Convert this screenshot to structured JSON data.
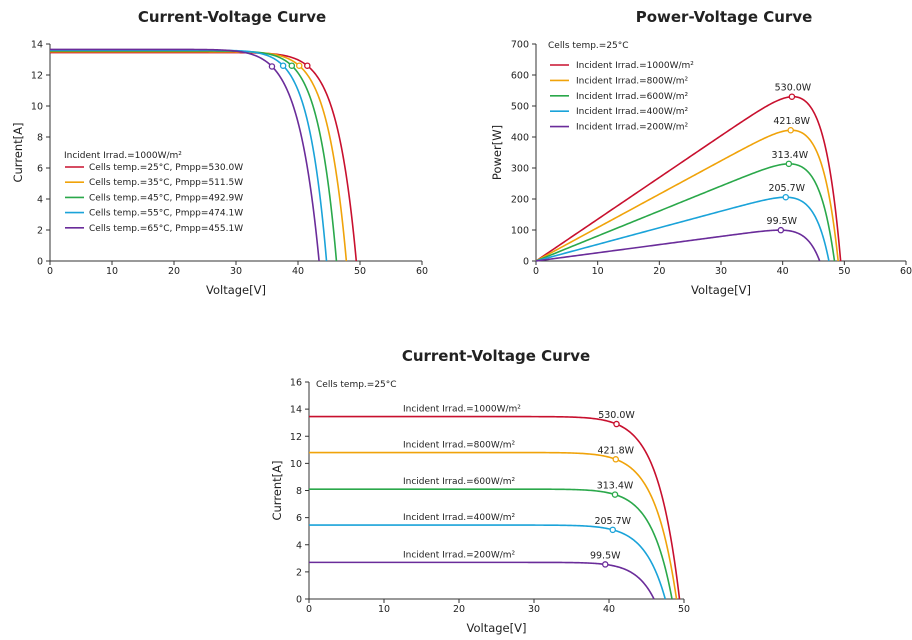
{
  "chart_data": [
    {
      "type": "line",
      "title": "Current-Voltage Curve",
      "xlabel": "Voltage[V]",
      "ylabel": "Current[A]",
      "xlim": [
        0,
        60
      ],
      "ylim": [
        0,
        14
      ],
      "xticks": [
        0,
        10,
        20,
        30,
        40,
        50,
        60
      ],
      "yticks": [
        0,
        2,
        4,
        6,
        8,
        10,
        12,
        14
      ],
      "legend_title": "Incident Irrad.=1000W/m²",
      "legend_position": "lower-left",
      "series": [
        {
          "name": "Cells temp.=25°C, Pmpp=530.0W",
          "color": "#c8102e",
          "isc": 13.45,
          "voc": 49.4,
          "vmp": 41.5,
          "imp": 12.6
        },
        {
          "name": "Cells temp.=35°C, Pmpp=511.5W",
          "color": "#f0a30a",
          "isc": 13.5,
          "voc": 47.8,
          "vmp": 40.2,
          "imp": 12.6
        },
        {
          "name": "Cells temp.=45°C, Pmpp=492.9W",
          "color": "#2aa84a",
          "isc": 13.55,
          "voc": 46.2,
          "vmp": 39.0,
          "imp": 12.6
        },
        {
          "name": "Cells temp.=55°C, Pmpp=474.1W",
          "color": "#1aa3d9",
          "isc": 13.6,
          "voc": 44.6,
          "vmp": 37.6,
          "imp": 12.6
        },
        {
          "name": "Cells temp.=65°C, Pmpp=455.1W",
          "color": "#6a2c9a",
          "isc": 13.65,
          "voc": 43.4,
          "vmp": 35.8,
          "imp": 12.55
        }
      ]
    },
    {
      "type": "line",
      "title": "Power-Voltage Curve",
      "xlabel": "Voltage[V]",
      "ylabel": "Power[W]",
      "xlim": [
        0,
        60
      ],
      "ylim": [
        0,
        700
      ],
      "xticks": [
        0,
        10,
        20,
        30,
        40,
        50,
        60
      ],
      "yticks": [
        0,
        100,
        200,
        300,
        400,
        500,
        600,
        700
      ],
      "legend_title": "Cells temp.=25°C",
      "legend_position": "top-left",
      "series": [
        {
          "name": "Incident Irrad.=1000W/m²",
          "color": "#c8102e",
          "voc": 49.4,
          "vmp": 41.5,
          "pmax": 530.0,
          "label": "530.0W"
        },
        {
          "name": "Incident Irrad.=800W/m²",
          "color": "#f0a30a",
          "voc": 49.0,
          "vmp": 41.3,
          "pmax": 421.8,
          "label": "421.8W"
        },
        {
          "name": "Incident Irrad.=600W/m²",
          "color": "#2aa84a",
          "voc": 48.4,
          "vmp": 41.0,
          "pmax": 313.4,
          "label": "313.4W"
        },
        {
          "name": "Incident Irrad.=400W/m²",
          "color": "#1aa3d9",
          "voc": 47.5,
          "vmp": 40.5,
          "pmax": 205.7,
          "label": "205.7W"
        },
        {
          "name": "Incident Irrad.=200W/m²",
          "color": "#6a2c9a",
          "voc": 46.0,
          "vmp": 39.7,
          "pmax": 99.5,
          "label": "99.5W"
        }
      ]
    },
    {
      "type": "line",
      "title": "Current-Voltage Curve",
      "xlabel": "Voltage[V]",
      "ylabel": "Current[A]",
      "xlim": [
        0,
        50
      ],
      "ylim": [
        0,
        16
      ],
      "xticks": [
        0,
        10,
        20,
        30,
        40,
        50
      ],
      "yticks": [
        0,
        2,
        4,
        6,
        8,
        10,
        12,
        14,
        16
      ],
      "legend_title": "Cells temp.=25°C",
      "legend_position": "top-left",
      "series": [
        {
          "name": "Incident Irrad.=1000W/m²",
          "color": "#c8102e",
          "isc": 13.45,
          "voc": 49.4,
          "vmp": 41.0,
          "imp": 12.9,
          "label": "530.0W"
        },
        {
          "name": "Incident Irrad.=800W/m²",
          "color": "#f0a30a",
          "isc": 10.8,
          "voc": 49.0,
          "vmp": 40.9,
          "imp": 10.3,
          "label": "421.8W"
        },
        {
          "name": "Incident Irrad.=600W/m²",
          "color": "#2aa84a",
          "isc": 8.1,
          "voc": 48.4,
          "vmp": 40.8,
          "imp": 7.7,
          "label": "313.4W"
        },
        {
          "name": "Incident Irrad.=400W/m²",
          "color": "#1aa3d9",
          "isc": 5.45,
          "voc": 47.5,
          "vmp": 40.5,
          "imp": 5.1,
          "label": "205.7W"
        },
        {
          "name": "Incident Irrad.=200W/m²",
          "color": "#6a2c9a",
          "isc": 2.7,
          "voc": 46.0,
          "vmp": 39.5,
          "imp": 2.55,
          "label": "99.5W"
        }
      ]
    }
  ]
}
